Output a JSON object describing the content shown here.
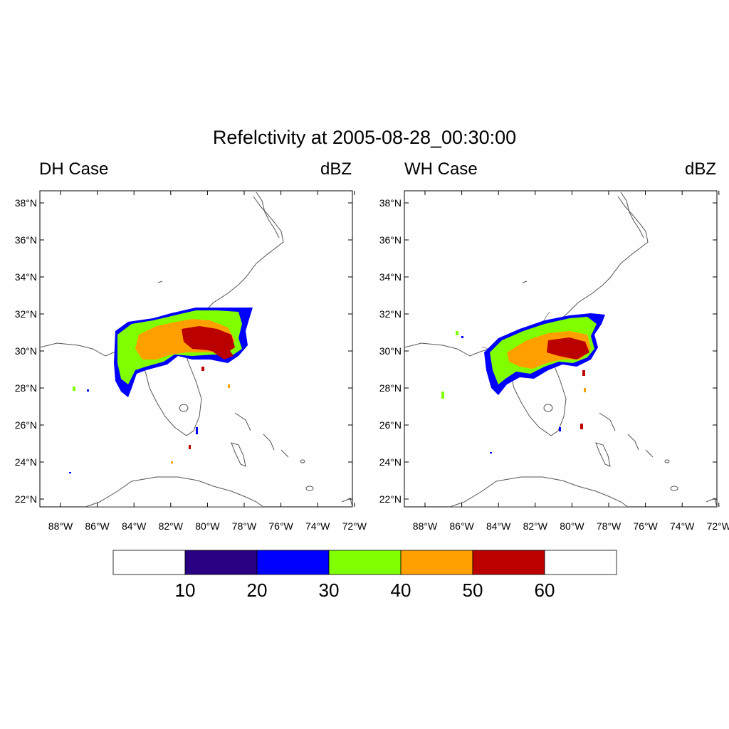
{
  "title": "Refelctivity at 2005-08-28_00:30:00",
  "panels": [
    {
      "left_title": "DH Case",
      "right_title": "dBZ"
    },
    {
      "left_title": "WH Case",
      "right_title": "dBZ"
    }
  ],
  "lat_labels": [
    "38°N",
    "36°N",
    "34°N",
    "32°N",
    "30°N",
    "28°N",
    "26°N",
    "24°N",
    "22°N"
  ],
  "lon_labels": [
    "88°W",
    "86°W",
    "84°W",
    "82°W",
    "80°W",
    "78°W",
    "76°W",
    "74°W",
    "72°W"
  ],
  "colorbar": {
    "labels": [
      "10",
      "20",
      "30",
      "40",
      "50",
      "60"
    ],
    "colors": [
      "#fefefe",
      "#2a0082",
      "#0000ff",
      "#80ff00",
      "#ffa000",
      "#bb0000",
      "#ffffff"
    ]
  }
}
